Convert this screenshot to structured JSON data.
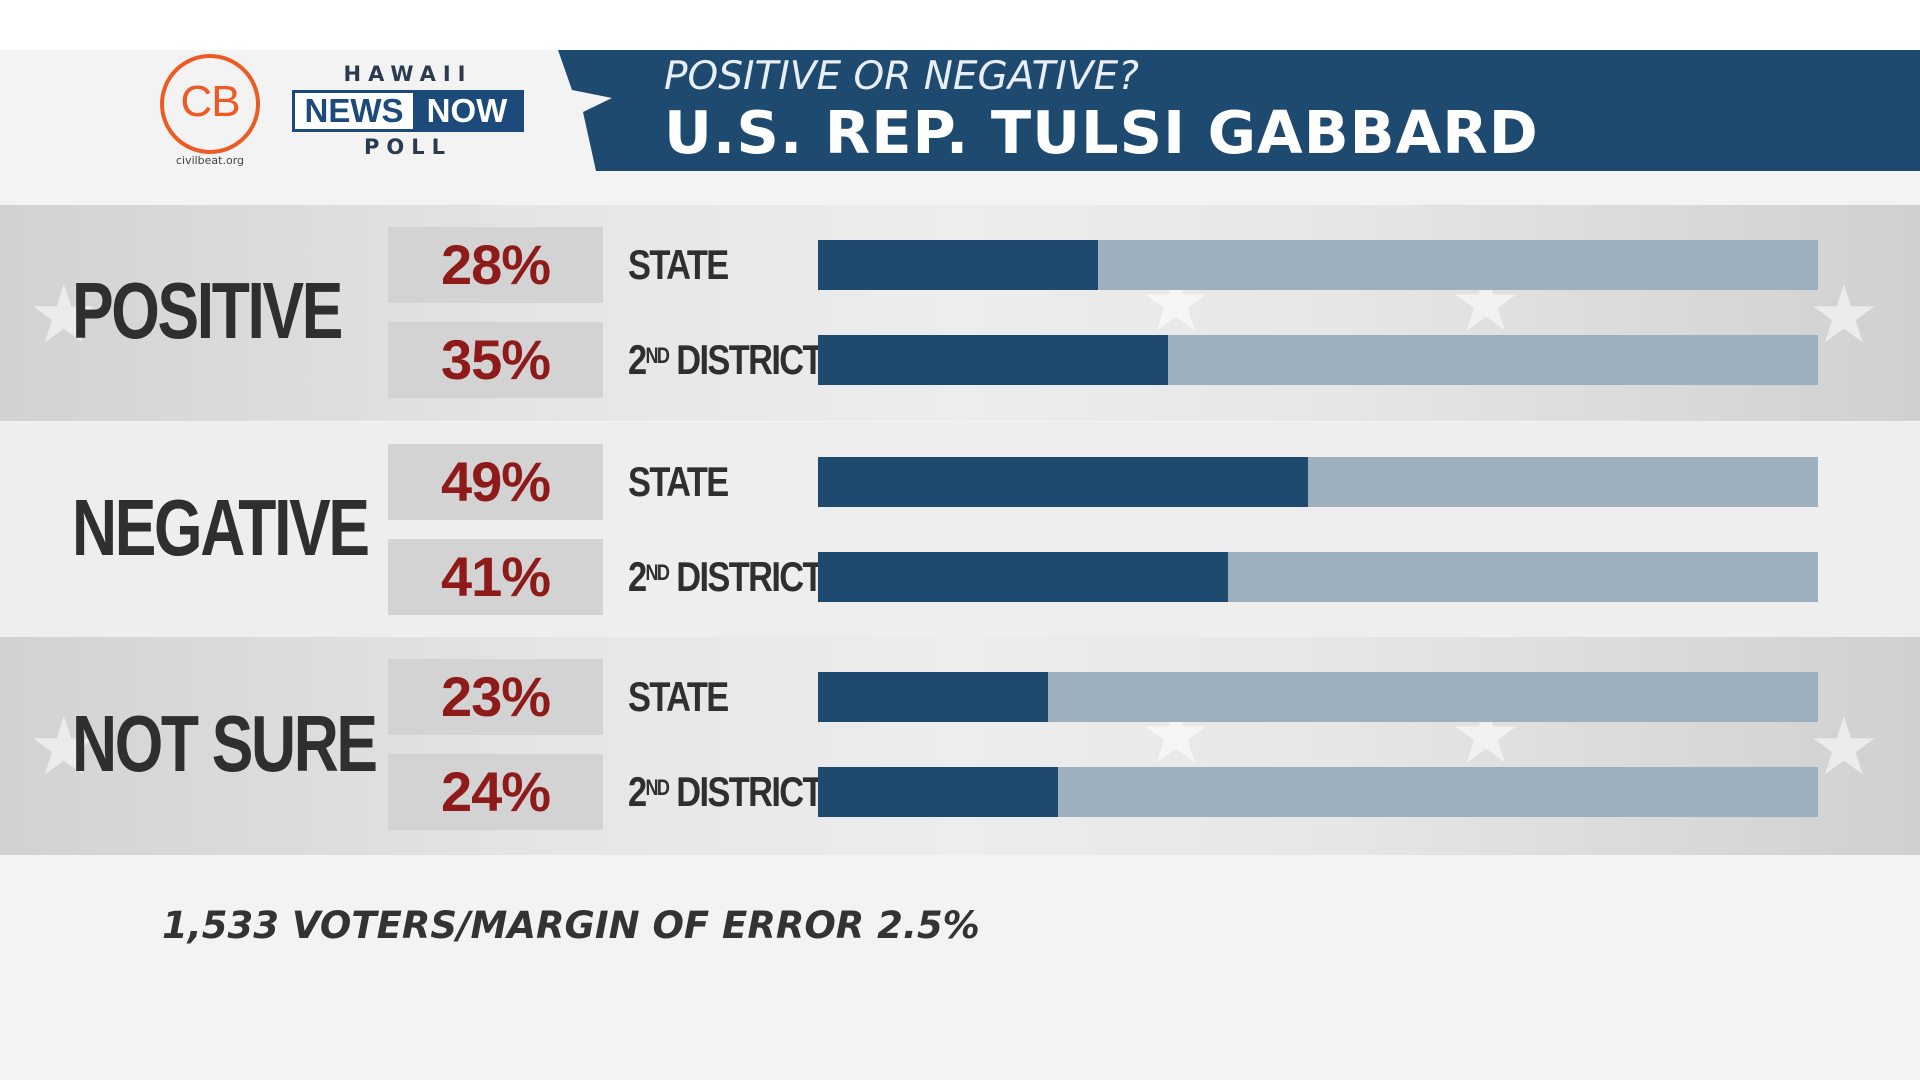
{
  "header": {
    "cb_logo_text": "CB",
    "cb_site": "civilbeat.org",
    "hnn_top": "HAWAII",
    "hnn_news": "NEWS",
    "hnn_now": "NOW",
    "hnn_bottom": "POLL",
    "subtitle": "POSITIVE OR NEGATIVE?",
    "title": "U.S. REP. TULSI GABBARD"
  },
  "colors": {
    "header_blue": "#1f4a70",
    "bar_fill": "#1f4a70",
    "bar_track": "#9eafbd",
    "percent_text": "#8f1a1a",
    "cb_orange": "#ee5a24"
  },
  "footnote": "1,533 VOTERS/MARGIN OF ERROR 2.5%",
  "chart_data": {
    "type": "bar",
    "orientation": "horizontal",
    "xlim": [
      0,
      100
    ],
    "unit": "%",
    "groups": [
      {
        "name": "POSITIVE",
        "rows": [
          {
            "label": "STATE",
            "label_main": "STATE",
            "label_sup": "",
            "value": 28,
            "value_label": "28%"
          },
          {
            "label": "2ND DISTRICT",
            "label_main": "2",
            "label_sup": "ND",
            "label_tail": " DISTRICT",
            "value": 35,
            "value_label": "35%"
          }
        ]
      },
      {
        "name": "NEGATIVE",
        "rows": [
          {
            "label": "STATE",
            "label_main": "STATE",
            "label_sup": "",
            "value": 49,
            "value_label": "49%"
          },
          {
            "label": "2ND DISTRICT",
            "label_main": "2",
            "label_sup": "ND",
            "label_tail": " DISTRICT",
            "value": 41,
            "value_label": "41%"
          }
        ]
      },
      {
        "name": "NOT SURE",
        "rows": [
          {
            "label": "STATE",
            "label_main": "STATE",
            "label_sup": "",
            "value": 23,
            "value_label": "23%"
          },
          {
            "label": "2ND DISTRICT",
            "label_main": "2",
            "label_sup": "ND",
            "label_tail": " DISTRICT",
            "value": 24,
            "value_label": "24%"
          }
        ]
      }
    ]
  }
}
